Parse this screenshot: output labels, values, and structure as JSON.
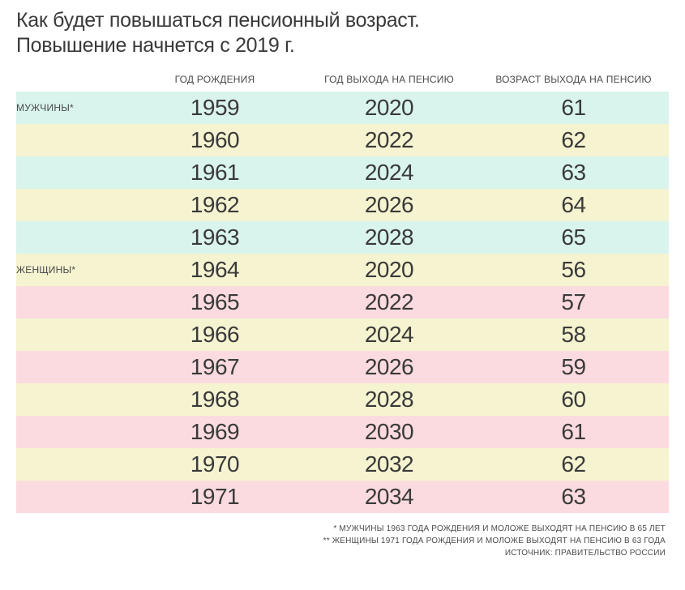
{
  "title_line1": "Как будет повышаться пенсионный возраст.",
  "title_line2": "Повышение начнется с 2019 г.",
  "columns": {
    "c1": "ГОД РОЖДЕНИЯ",
    "c2": "ГОД ВЫХОДА НА ПЕНСИЮ",
    "c3": "ВОЗРАСТ ВЫХОДА НА ПЕНСИЮ"
  },
  "groups": [
    {
      "label": "МУЖЧИНЫ*",
      "at_row": 0
    },
    {
      "label": "ЖЕНЩИНЫ*",
      "at_row": 5
    }
  ],
  "row_colors": {
    "men_a": "#d9f4ed",
    "men_b": "#f6f3d0",
    "women_a": "#fbdbdf",
    "women_b": "#f6f3d0"
  },
  "rows": [
    {
      "birth": "1959",
      "retire": "2020",
      "age": "61",
      "bg": "men_a"
    },
    {
      "birth": "1960",
      "retire": "2022",
      "age": "62",
      "bg": "men_b"
    },
    {
      "birth": "1961",
      "retire": "2024",
      "age": "63",
      "bg": "men_a"
    },
    {
      "birth": "1962",
      "retire": "2026",
      "age": "64",
      "bg": "men_b"
    },
    {
      "birth": "1963",
      "retire": "2028",
      "age": "65",
      "bg": "men_a"
    },
    {
      "birth": "1964",
      "retire": "2020",
      "age": "56",
      "bg": "women_b"
    },
    {
      "birth": "1965",
      "retire": "2022",
      "age": "57",
      "bg": "women_a"
    },
    {
      "birth": "1966",
      "retire": "2024",
      "age": "58",
      "bg": "women_b"
    },
    {
      "birth": "1967",
      "retire": "2026",
      "age": "59",
      "bg": "women_a"
    },
    {
      "birth": "1968",
      "retire": "2028",
      "age": "60",
      "bg": "women_b"
    },
    {
      "birth": "1969",
      "retire": "2030",
      "age": "61",
      "bg": "women_a"
    },
    {
      "birth": "1970",
      "retire": "2032",
      "age": "62",
      "bg": "women_b"
    },
    {
      "birth": "1971",
      "retire": "2034",
      "age": "63",
      "bg": "women_a"
    }
  ],
  "footnotes": [
    "* МУЖЧИНЫ 1963 ГОДА РОЖДЕНИЯ И МОЛОЖЕ ВЫХОДЯТ НА ПЕНСИЮ В 65 ЛЕТ",
    "** ЖЕНЩИНЫ 1971 ГОДА РОЖДЕНИЯ И МОЛОЖЕ ВЫХОДЯТ НА ПЕНСИЮ В 63 ГОДА",
    "ИСТОЧНИК: ПРАВИТЕЛЬСТВО РОССИИ"
  ]
}
